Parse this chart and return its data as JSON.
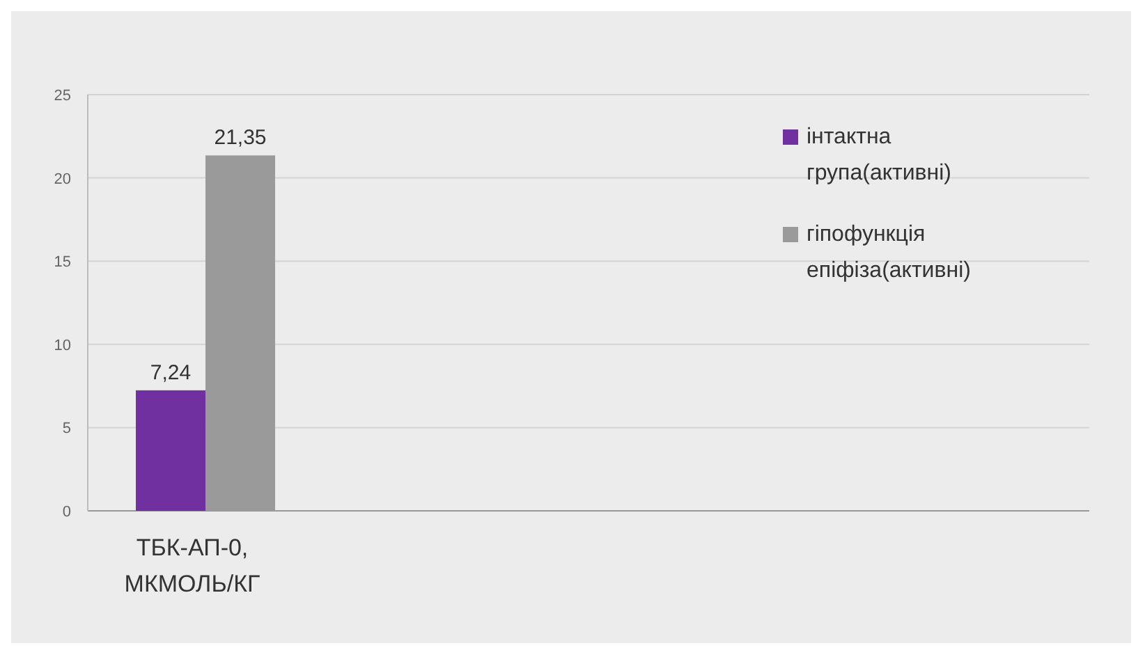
{
  "chart_data": {
    "type": "bar",
    "categories": [
      "ТБК-АП-0, МКМОЛЬ/КГ"
    ],
    "series": [
      {
        "name": "інтактна група(активні)",
        "color": "#7030a0",
        "values": [
          7.24
        ],
        "value_labels": [
          "7,24"
        ]
      },
      {
        "name": "гіпофункція епіфіза(активні)",
        "color": "#9a9a9a",
        "values": [
          21.35
        ],
        "value_labels": [
          "21,35"
        ]
      }
    ],
    "ylim": [
      0,
      25
    ],
    "yticks": [
      0,
      5,
      10,
      15,
      20,
      25
    ],
    "grid": "y",
    "legend": "right"
  }
}
